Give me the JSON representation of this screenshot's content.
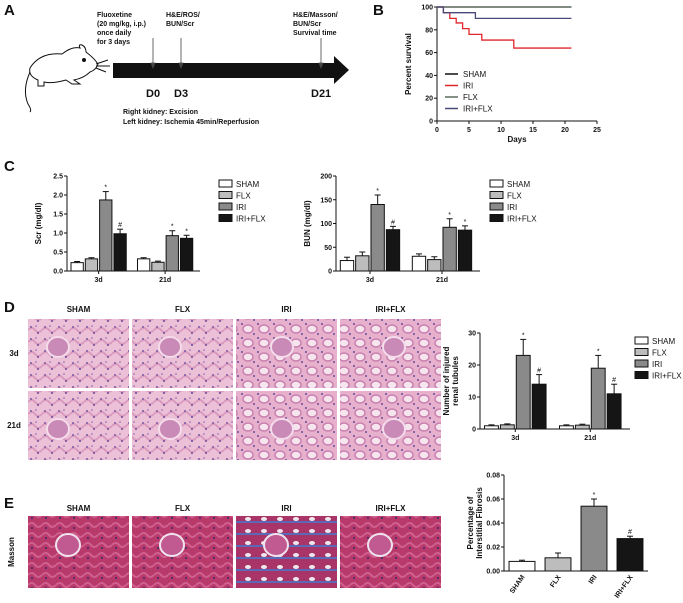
{
  "panels": {
    "A": "A",
    "B": "B",
    "C": "C",
    "D": "D",
    "E": "E"
  },
  "timeline": {
    "treatment": [
      "Fluoxetine",
      "(20 mg/kg, i.p.)",
      "once daily",
      "for 3 days"
    ],
    "d3_assays": [
      "H&E/ROS/",
      "BUN/Scr"
    ],
    "d21_assays": [
      "H&E/Masson/",
      "BUN/Scr",
      "Survival time"
    ],
    "days": [
      "D0",
      "D3",
      "D21"
    ],
    "surgery": [
      "Right kidney: Excision",
      "Left kidney: Ischemia 45min/Reperfusion"
    ]
  },
  "histology": {
    "columns": [
      "SHAM",
      "FLX",
      "IRI",
      "IRI+FLX"
    ],
    "rows_he": [
      "3d",
      "21d"
    ],
    "row_masson": "Masson"
  },
  "colors": {
    "SHAM": "#ffffff",
    "FLX": "#bdbdbd",
    "IRI": "#8a8a8a",
    "IRI+FLX": "#151515",
    "survival_IRI": "#e0262b",
    "survival_IRIFLX": "#4a4a7a",
    "survival_FLX": "#5a6a5a",
    "tissue": "#e8b3cc"
  },
  "chart_data": [
    {
      "type": "line",
      "xlabel": "Days",
      "ylabel": "Percent survival",
      "xlim": [
        0,
        25
      ],
      "ylim": [
        0,
        100
      ],
      "xticks": [
        "0",
        "5",
        "10",
        "15",
        "20",
        "25"
      ],
      "yticks": [
        "0",
        "20",
        "40",
        "60",
        "80",
        "100"
      ],
      "legend": "lower-left",
      "series": [
        {
          "name": "SHAM",
          "x": [
            0,
            21
          ],
          "y": [
            100,
            100
          ]
        },
        {
          "name": "IRI",
          "x": [
            0,
            1,
            2,
            3,
            4,
            5,
            7,
            12,
            21
          ],
          "y": [
            100,
            95,
            90,
            86,
            81,
            76,
            71,
            64,
            64
          ]
        },
        {
          "name": "FLX",
          "x": [
            0,
            21
          ],
          "y": [
            100,
            100
          ]
        },
        {
          "name": "IRI+FLX",
          "x": [
            0,
            1,
            6,
            21
          ],
          "y": [
            100,
            95,
            90,
            90
          ]
        }
      ]
    },
    {
      "type": "bar",
      "ylabel": "Scr (mg/dl)",
      "ylim": [
        0,
        2.5
      ],
      "yticks": [
        "0.0",
        "0.5",
        "1.0",
        "1.5",
        "2.0",
        "2.5"
      ],
      "categories": [
        "3d",
        "21d"
      ],
      "legend": "right",
      "series": [
        {
          "name": "SHAM",
          "values": [
            0.22,
            0.32
          ],
          "errors": [
            0.03,
            0.03
          ],
          "marks": [
            "",
            ""
          ]
        },
        {
          "name": "FLX",
          "values": [
            0.32,
            0.23
          ],
          "errors": [
            0.03,
            0.03
          ],
          "marks": [
            "",
            ""
          ]
        },
        {
          "name": "IRI",
          "values": [
            1.87,
            0.93
          ],
          "errors": [
            0.22,
            0.13
          ],
          "marks": [
            "*",
            "*"
          ]
        },
        {
          "name": "IRI+FLX",
          "values": [
            0.98,
            0.86
          ],
          "errors": [
            0.12,
            0.08
          ],
          "marks": [
            "#",
            "*"
          ]
        }
      ]
    },
    {
      "type": "bar",
      "ylabel": "BUN (mg/dl)",
      "ylim": [
        0,
        200
      ],
      "yticks": [
        "0",
        "50",
        "100",
        "150",
        "200"
      ],
      "categories": [
        "3d",
        "21d"
      ],
      "legend": "right",
      "series": [
        {
          "name": "SHAM",
          "values": [
            22,
            31
          ],
          "errors": [
            7,
            5
          ],
          "marks": [
            "",
            ""
          ]
        },
        {
          "name": "FLX",
          "values": [
            32,
            24
          ],
          "errors": [
            8,
            6
          ],
          "marks": [
            "",
            ""
          ]
        },
        {
          "name": "IRI",
          "values": [
            140,
            92
          ],
          "errors": [
            20,
            18
          ],
          "marks": [
            "*",
            "*"
          ]
        },
        {
          "name": "IRI+FLX",
          "values": [
            87,
            86
          ],
          "errors": [
            7,
            9
          ],
          "marks": [
            "#",
            "*"
          ]
        }
      ]
    },
    {
      "type": "bar",
      "ylabel": [
        "Number of injured",
        "renal tubules"
      ],
      "ylim": [
        0,
        30
      ],
      "yticks": [
        "0",
        "10",
        "20",
        "30"
      ],
      "categories": [
        "3d",
        "21d"
      ],
      "legend": "right",
      "series": [
        {
          "name": "SHAM",
          "values": [
            1.0,
            1.0
          ],
          "errors": [
            0.3,
            0.3
          ],
          "marks": [
            "",
            ""
          ]
        },
        {
          "name": "FLX",
          "values": [
            1.3,
            1.2
          ],
          "errors": [
            0.3,
            0.3
          ],
          "marks": [
            "",
            ""
          ]
        },
        {
          "name": "IRI",
          "values": [
            23,
            19
          ],
          "errors": [
            5,
            4
          ],
          "marks": [
            "*",
            "*"
          ]
        },
        {
          "name": "IRI+FLX",
          "values": [
            14,
            11
          ],
          "errors": [
            3,
            3
          ],
          "marks": [
            "#",
            "#"
          ]
        }
      ]
    },
    {
      "type": "bar",
      "ylabel": [
        "Percentage of",
        "Interstitial Fibrosis"
      ],
      "ylim": [
        0,
        0.08
      ],
      "yticks": [
        "0.00",
        "0.02",
        "0.04",
        "0.06",
        "0.08"
      ],
      "categories": [
        "SHAM",
        "FLX",
        "IRI",
        "IRI+FLX"
      ],
      "values": [
        0.008,
        0.011,
        0.054,
        0.027
      ],
      "errors": [
        0.001,
        0.004,
        0.006,
        0.002
      ],
      "marks": [
        "",
        "",
        "*",
        "#"
      ]
    }
  ]
}
